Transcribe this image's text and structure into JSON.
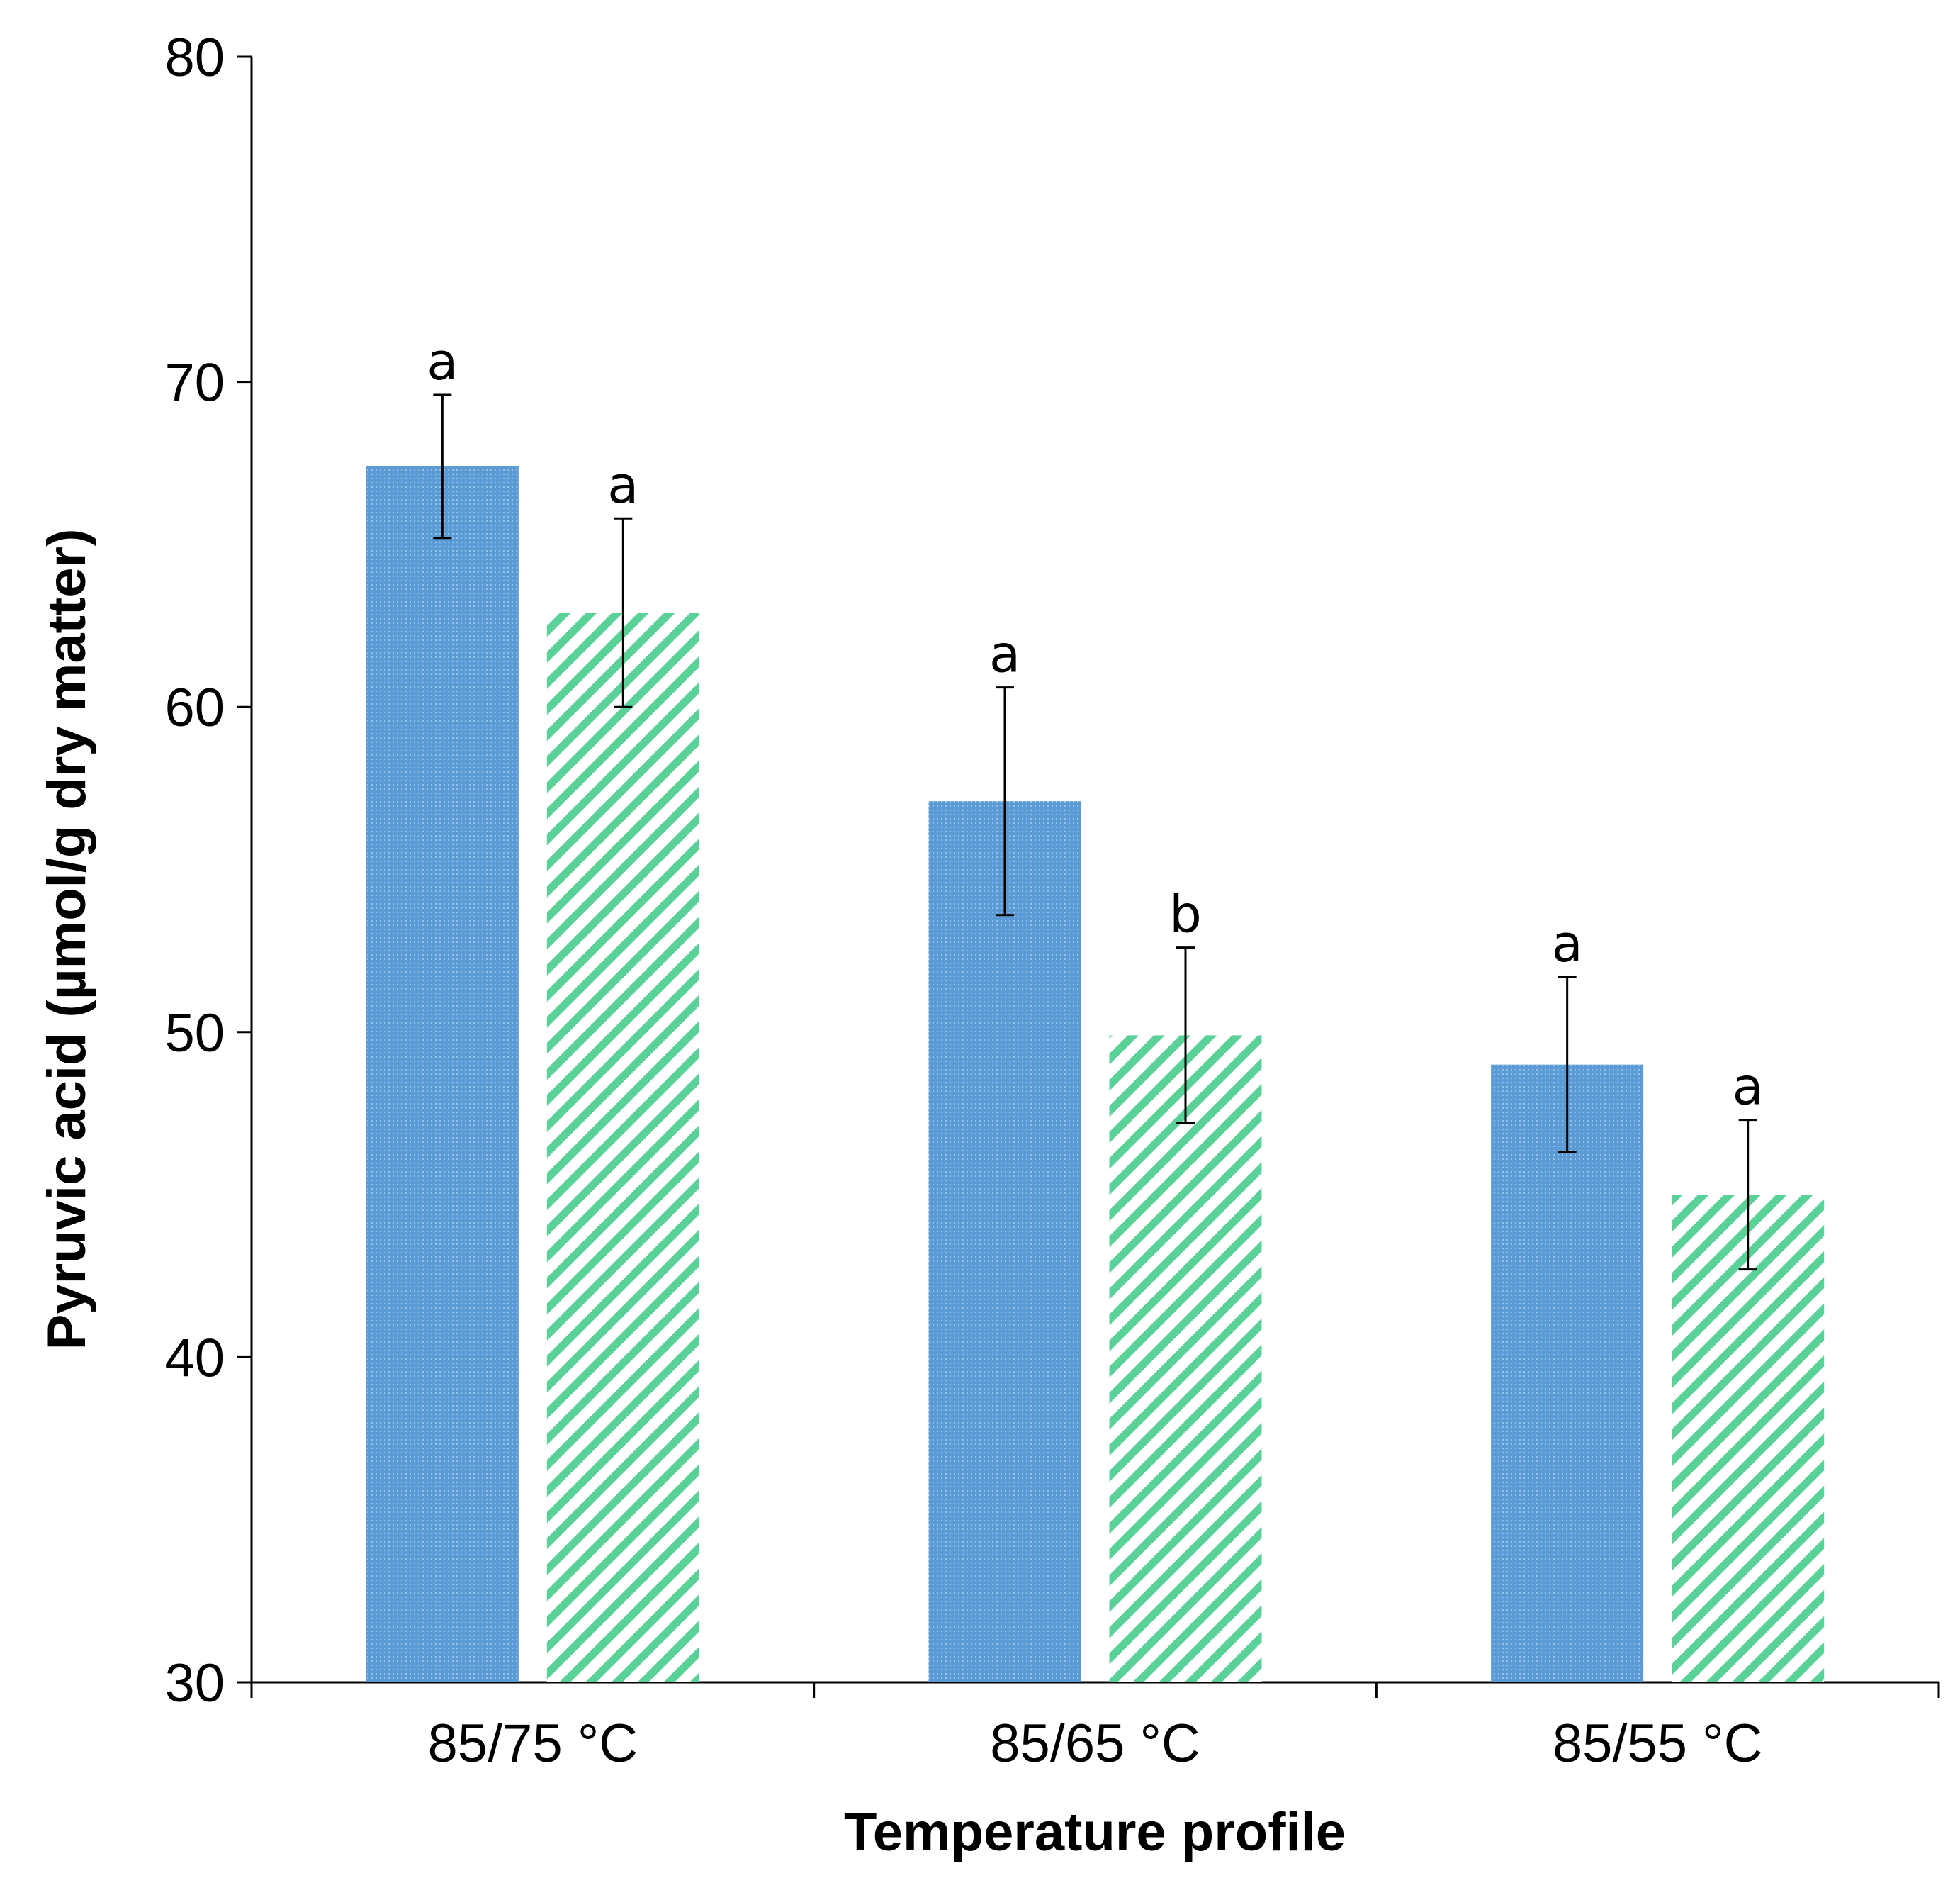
{
  "chart_data": {
    "type": "bar",
    "title": "",
    "xlabel": "Temperature profile",
    "ylabel": "Pyruvic acid (µmol/g dry matter)",
    "ylim": [
      30,
      80
    ],
    "yticks": [
      30,
      40,
      50,
      60,
      70,
      80
    ],
    "ytick_labels": [
      "30",
      "40",
      "50",
      "60",
      "70",
      "80"
    ],
    "grid": false,
    "legend": null,
    "categories": [
      "85/75 °C",
      "85/65 °C",
      "85/55 °C"
    ],
    "series": [
      {
        "name": "series-1",
        "color": "#5B9BD5",
        "pattern": "dotted",
        "values": [
          67.4,
          57.1,
          49.0
        ],
        "errors": [
          2.2,
          3.5,
          2.7
        ],
        "sig_labels": [
          "a",
          "a",
          "a"
        ]
      },
      {
        "name": "series-2",
        "color": "#5BD19A",
        "pattern": "diagonal-stripes",
        "values": [
          62.9,
          49.9,
          45.0
        ],
        "errors": [
          2.9,
          2.7,
          2.3
        ],
        "sig_labels": [
          "a",
          "b",
          "a"
        ]
      }
    ]
  }
}
